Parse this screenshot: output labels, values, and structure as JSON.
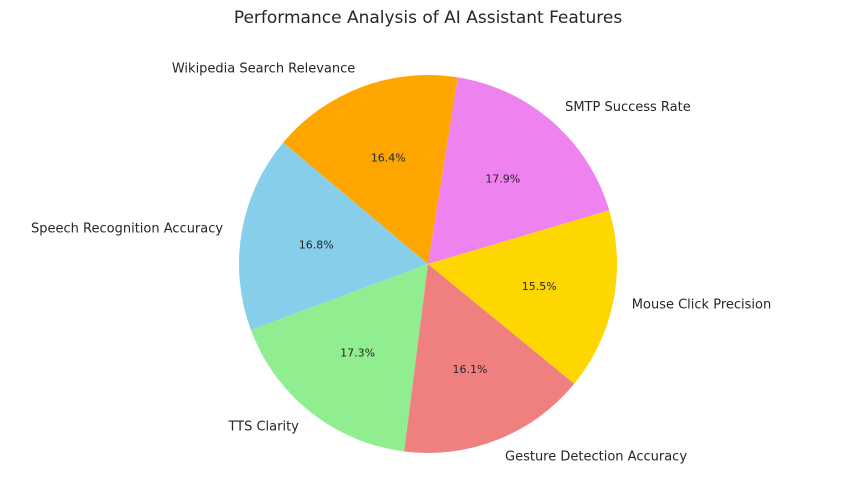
{
  "chart_data": {
    "type": "pie",
    "title": "Performance Analysis of AI Assistant Features",
    "start_angle_deg": 140,
    "direction": "counterclockwise",
    "legend": "none",
    "slices": [
      {
        "label": "Speech Recognition Accuracy",
        "value": 16.8,
        "pct_label": "16.8%",
        "color": "#87ceeb"
      },
      {
        "label": "TTS Clarity",
        "value": 17.3,
        "pct_label": "17.3%",
        "color": "#90ee90"
      },
      {
        "label": "Gesture Detection Accuracy",
        "value": 16.1,
        "pct_label": "16.1%",
        "color": "#f08080"
      },
      {
        "label": "Mouse Click Precision",
        "value": 15.5,
        "pct_label": "15.5%",
        "color": "#ffd700"
      },
      {
        "label": "SMTP Success Rate",
        "value": 17.9,
        "pct_label": "17.9%",
        "color": "#ee82ee"
      },
      {
        "label": "Wikipedia Search Relevance",
        "value": 16.4,
        "pct_label": "16.4%",
        "color": "#ffa500"
      }
    ]
  }
}
